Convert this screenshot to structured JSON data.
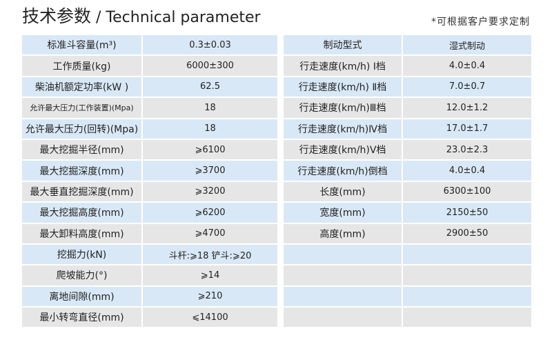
{
  "header": {
    "title_cn": "技术参数",
    "separator": " / ",
    "title_en": "Technical parameter",
    "note": "*可根据客户要求定制"
  },
  "colors": {
    "row_blue": "#d9e8f6",
    "row_gray": "#e6e6e6"
  },
  "left_table": [
    {
      "label": "标准斗容量(m³)",
      "value": "0.3±0.03"
    },
    {
      "label": "工作质量(kg)",
      "value": "6000±300"
    },
    {
      "label": "柴油机额定功率(kW )",
      "value": "62.5"
    },
    {
      "label": "允许最大压力(工作装置)(Mpa)",
      "value": "18"
    },
    {
      "label": "允许最大压力(回转)(Mpa)",
      "value": "18"
    },
    {
      "label": "最大挖掘半径(mm)",
      "value": "⩾6100"
    },
    {
      "label": "最大挖掘深度(mm)",
      "value": "⩾3700"
    },
    {
      "label": "最大垂直挖掘深度(mm)",
      "value": "⩾3200"
    },
    {
      "label": "最大挖掘高度(mm)",
      "value": "⩾6200"
    },
    {
      "label": "最大卸料高度(mm)",
      "value": "⩾4700"
    },
    {
      "label": "挖掘力(kN)",
      "value": "斗杆:⩾18 铲斗:⩾20"
    },
    {
      "label": "爬坡能力(°)",
      "value": "⩾14"
    },
    {
      "label": "离地间隙(mm)",
      "value": "⩾210"
    },
    {
      "label": "最小转弯直径(mm)",
      "value": "⩽14100"
    }
  ],
  "right_table": [
    {
      "label": "制动型式",
      "value": "湿式制动"
    },
    {
      "label": "行走速度(km/h) Ⅰ档",
      "value": "4.0±0.4"
    },
    {
      "label": "行走速度(km/h) Ⅱ档",
      "value": "7.0±0.7"
    },
    {
      "label": "行走速度(km/h)Ⅲ档",
      "value": "12.0±1.2"
    },
    {
      "label": "行走速度(km/h)Ⅳ档",
      "value": "17.0±1.7"
    },
    {
      "label": "行走速度(km/h)Ⅴ档",
      "value": "23.0±2.3"
    },
    {
      "label": "行走速度(km/h)倒档",
      "value": "4.0±0.4"
    },
    {
      "label": "长度(mm)",
      "value": "6300±100"
    },
    {
      "label": "宽度(mm)",
      "value": "2150±50"
    },
    {
      "label": "高度(mm)",
      "value": "2900±50"
    },
    {
      "label": "",
      "value": ""
    },
    {
      "label": "",
      "value": ""
    },
    {
      "label": "",
      "value": ""
    },
    {
      "label": "",
      "value": ""
    }
  ]
}
